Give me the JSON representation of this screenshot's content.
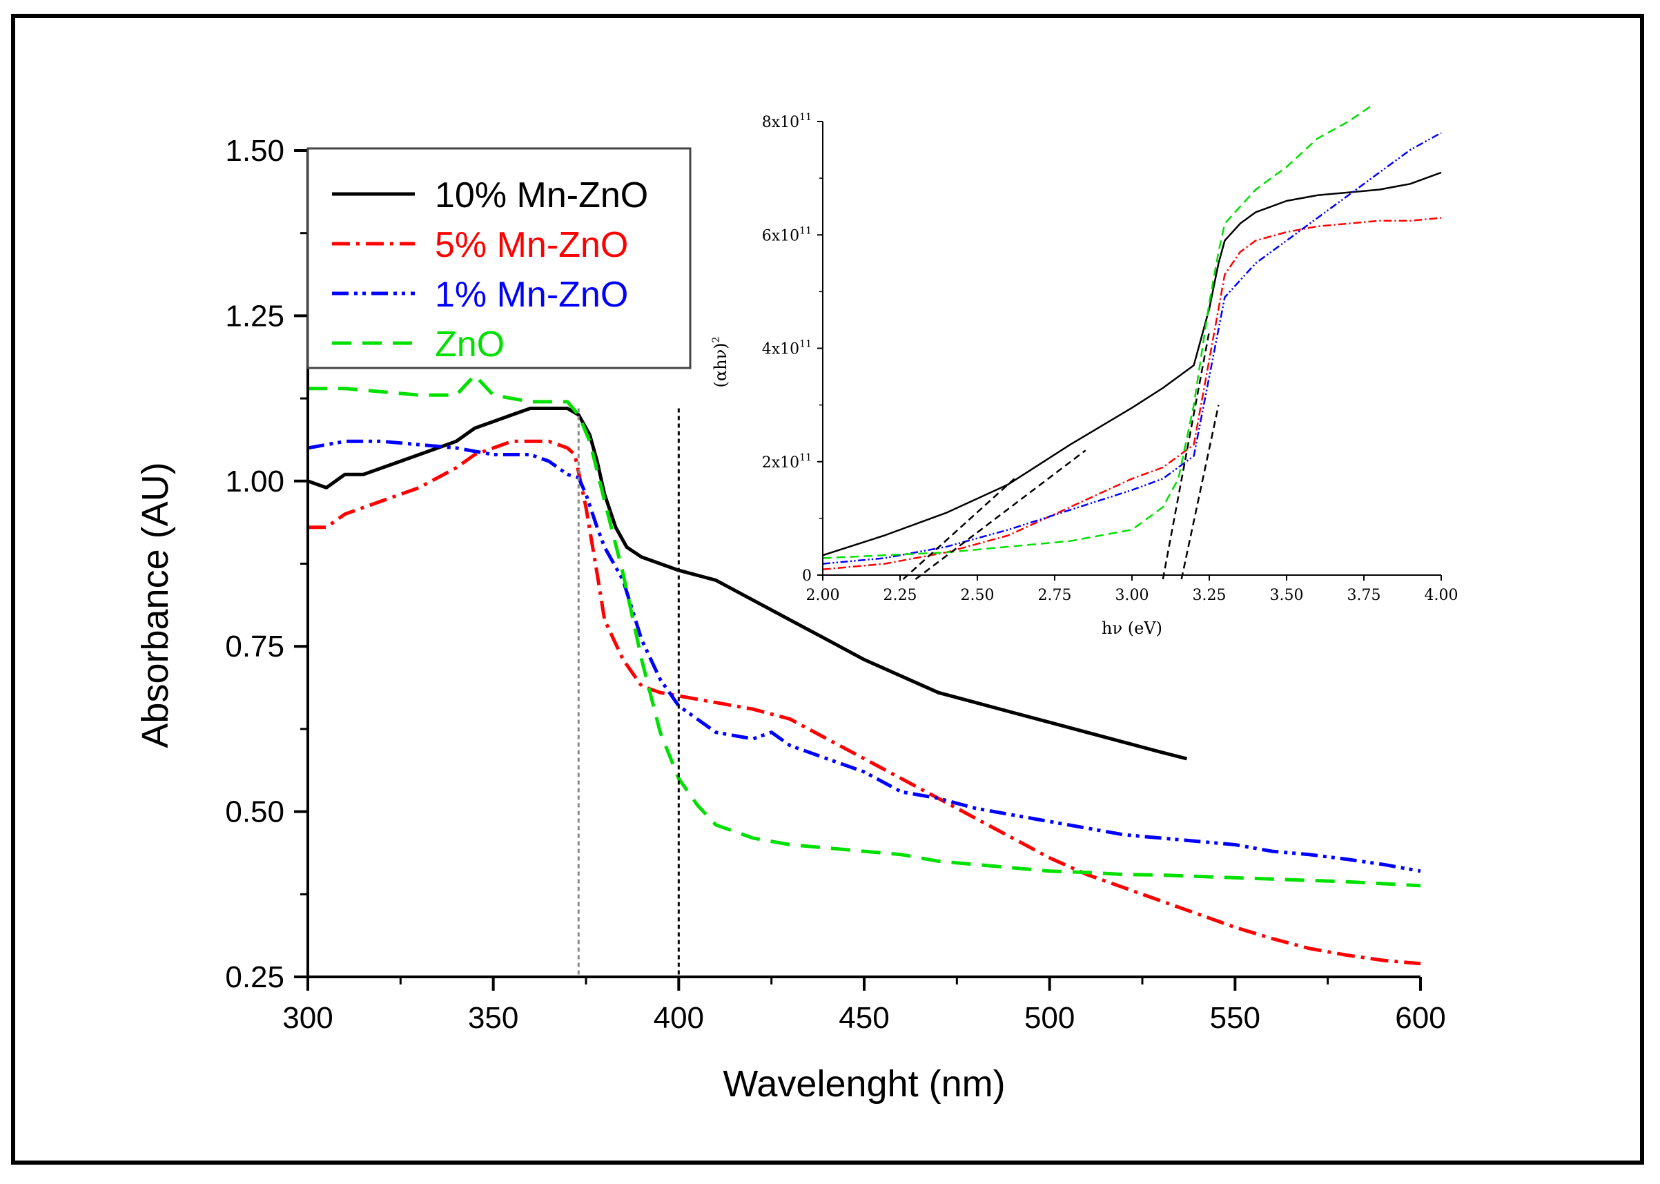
{
  "chart_data": [
    {
      "type": "line",
      "xlabel": "Wavelenght (nm)",
      "ylabel": "Absorbance (AU)",
      "xlim": [
        300,
        600
      ],
      "ylim": [
        0.25,
        1.5
      ],
      "x_ticks": [
        "300",
        "350",
        "400",
        "450",
        "500",
        "550",
        "600"
      ],
      "y_ticks": [
        "0.25",
        "0.50",
        "0.75",
        "1.00",
        "1.25",
        "1.50"
      ],
      "legend_position": "top-left",
      "reference_lines": [
        373,
        400
      ],
      "series": [
        {
          "name": "10% Mn-ZnO",
          "color": "#000000",
          "style": "solid",
          "x": [
            300,
            305,
            310,
            315,
            320,
            325,
            330,
            335,
            340,
            345,
            350,
            355,
            360,
            365,
            370,
            373,
            376,
            378,
            380,
            383,
            386,
            390,
            395,
            400,
            410,
            420,
            430,
            440,
            450,
            460,
            470,
            480,
            490,
            500,
            510,
            520,
            530,
            537
          ],
          "y": [
            1.0,
            0.99,
            1.01,
            1.01,
            1.02,
            1.03,
            1.04,
            1.05,
            1.06,
            1.08,
            1.09,
            1.1,
            1.11,
            1.11,
            1.11,
            1.1,
            1.07,
            1.03,
            0.98,
            0.93,
            0.9,
            0.885,
            0.875,
            0.865,
            0.85,
            0.82,
            0.79,
            0.76,
            0.73,
            0.705,
            0.68,
            0.665,
            0.65,
            0.635,
            0.62,
            0.605,
            0.59,
            0.58
          ]
        },
        {
          "name": "5% Mn-ZnO",
          "color": "#ff0000",
          "style": "dash-dot",
          "x": [
            300,
            305,
            310,
            315,
            320,
            330,
            340,
            345,
            350,
            355,
            360,
            365,
            370,
            372,
            375,
            378,
            380,
            385,
            390,
            395,
            400,
            410,
            420,
            430,
            440,
            450,
            460,
            470,
            480,
            490,
            500,
            510,
            520,
            530,
            540,
            550,
            560,
            570,
            580,
            590,
            600
          ],
          "y": [
            0.93,
            0.93,
            0.95,
            0.96,
            0.97,
            0.99,
            1.02,
            1.04,
            1.05,
            1.06,
            1.06,
            1.06,
            1.05,
            1.04,
            0.96,
            0.86,
            0.79,
            0.73,
            0.69,
            0.68,
            0.675,
            0.665,
            0.655,
            0.64,
            0.61,
            0.58,
            0.55,
            0.52,
            0.49,
            0.46,
            0.43,
            0.405,
            0.385,
            0.365,
            0.345,
            0.325,
            0.308,
            0.293,
            0.283,
            0.275,
            0.27
          ]
        },
        {
          "name": "1% Mn-ZnO",
          "color": "#0000ff",
          "style": "dash-dot-dot",
          "x": [
            300,
            310,
            320,
            330,
            340,
            350,
            360,
            365,
            370,
            373,
            375,
            378,
            380,
            385,
            390,
            395,
            400,
            410,
            420,
            425,
            430,
            440,
            450,
            460,
            470,
            480,
            490,
            500,
            510,
            520,
            530,
            540,
            550,
            560,
            570,
            580,
            590,
            600
          ],
          "y": [
            1.05,
            1.06,
            1.06,
            1.055,
            1.05,
            1.04,
            1.04,
            1.03,
            1.01,
            1.005,
            0.98,
            0.93,
            0.9,
            0.85,
            0.76,
            0.7,
            0.66,
            0.62,
            0.61,
            0.62,
            0.6,
            0.58,
            0.56,
            0.53,
            0.52,
            0.505,
            0.495,
            0.485,
            0.475,
            0.465,
            0.46,
            0.455,
            0.45,
            0.44,
            0.435,
            0.428,
            0.42,
            0.41
          ]
        },
        {
          "name": "ZnO",
          "color": "#00e000",
          "style": "dashed",
          "x": [
            300,
            310,
            320,
            330,
            340,
            345,
            350,
            360,
            370,
            373,
            376,
            380,
            385,
            390,
            395,
            400,
            405,
            410,
            420,
            430,
            440,
            450,
            460,
            470,
            480,
            490,
            500,
            510,
            520,
            530,
            540,
            550,
            560,
            570,
            580,
            590,
            600
          ],
          "y": [
            1.14,
            1.14,
            1.135,
            1.13,
            1.13,
            1.16,
            1.13,
            1.12,
            1.12,
            1.1,
            1.06,
            0.97,
            0.86,
            0.73,
            0.62,
            0.55,
            0.51,
            0.48,
            0.46,
            0.45,
            0.445,
            0.44,
            0.435,
            0.425,
            0.42,
            0.415,
            0.41,
            0.408,
            0.405,
            0.404,
            0.402,
            0.4,
            0.398,
            0.396,
            0.394,
            0.391,
            0.388
          ]
        }
      ]
    },
    {
      "type": "line",
      "inset": true,
      "xlabel": "hν (eV)",
      "ylabel": "(αhν)",
      "ylabel_superscript": "2",
      "xlim": [
        2.0,
        4.0
      ],
      "ylim": [
        0,
        800000000000.0
      ],
      "x_ticks": [
        "2.00",
        "2.25",
        "2.50",
        "2.75",
        "3.00",
        "3.25",
        "3.50",
        "3.75",
        "4.00"
      ],
      "y_ticks": [
        {
          "base": "0",
          "exp": ""
        },
        {
          "base": "2x10",
          "exp": "11"
        },
        {
          "base": "4x10",
          "exp": "11"
        },
        {
          "base": "6x10",
          "exp": "11"
        },
        {
          "base": "8x10",
          "exp": "11"
        }
      ],
      "series": [
        {
          "name": "10% Mn-ZnO",
          "color": "#000000",
          "style": "solid",
          "x": [
            2.0,
            2.2,
            2.4,
            2.6,
            2.8,
            3.0,
            3.1,
            3.2,
            3.25,
            3.28,
            3.3,
            3.35,
            3.4,
            3.5,
            3.6,
            3.7,
            3.8,
            3.9,
            4.0
          ],
          "y": [
            35000000000.0,
            70000000000.0,
            110000000000.0,
            160000000000.0,
            230000000000.0,
            295000000000.0,
            330000000000.0,
            370000000000.0,
            470000000000.0,
            550000000000.0,
            590000000000.0,
            620000000000.0,
            640000000000.0,
            660000000000.0,
            670000000000.0,
            675000000000.0,
            680000000000.0,
            690000000000.0,
            710000000000.0
          ]
        },
        {
          "name": "5% Mn-ZnO",
          "color": "#ff0000",
          "style": "dash-dot",
          "x": [
            2.0,
            2.2,
            2.4,
            2.6,
            2.8,
            3.0,
            3.1,
            3.2,
            3.25,
            3.3,
            3.35,
            3.4,
            3.5,
            3.6,
            3.7,
            3.8,
            3.9,
            4.0
          ],
          "y": [
            10000000000.0,
            20000000000.0,
            40000000000.0,
            70000000000.0,
            120000000000.0,
            170000000000.0,
            190000000000.0,
            230000000000.0,
            380000000000.0,
            530000000000.0,
            570000000000.0,
            590000000000.0,
            605000000000.0,
            615000000000.0,
            620000000000.0,
            625000000000.0,
            625000000000.0,
            630000000000.0
          ]
        },
        {
          "name": "1% Mn-ZnO",
          "color": "#0000ff",
          "style": "dash-dot-dot",
          "x": [
            2.0,
            2.2,
            2.4,
            2.6,
            2.8,
            3.0,
            3.1,
            3.2,
            3.25,
            3.3,
            3.35,
            3.4,
            3.5,
            3.6,
            3.7,
            3.8,
            3.9,
            4.0
          ],
          "y": [
            20000000000.0,
            30000000000.0,
            50000000000.0,
            80000000000.0,
            115000000000.0,
            150000000000.0,
            170000000000.0,
            210000000000.0,
            350000000000.0,
            490000000000.0,
            520000000000.0,
            550000000000.0,
            590000000000.0,
            630000000000.0,
            670000000000.0,
            710000000000.0,
            750000000000.0,
            780000000000.0
          ]
        },
        {
          "name": "ZnO",
          "color": "#00e000",
          "style": "dashed",
          "x": [
            2.0,
            2.2,
            2.4,
            2.6,
            2.8,
            3.0,
            3.1,
            3.15,
            3.2,
            3.25,
            3.28,
            3.3,
            3.35,
            3.4,
            3.5,
            3.6,
            3.7,
            3.78
          ],
          "y": [
            30000000000.0,
            35000000000.0,
            40000000000.0,
            50000000000.0,
            60000000000.0,
            80000000000.0,
            120000000000.0,
            170000000000.0,
            300000000000.0,
            480000000000.0,
            570000000000.0,
            620000000000.0,
            650000000000.0,
            680000000000.0,
            720000000000.0,
            770000000000.0,
            800000000000.0,
            830000000000.0
          ]
        }
      ]
    }
  ]
}
